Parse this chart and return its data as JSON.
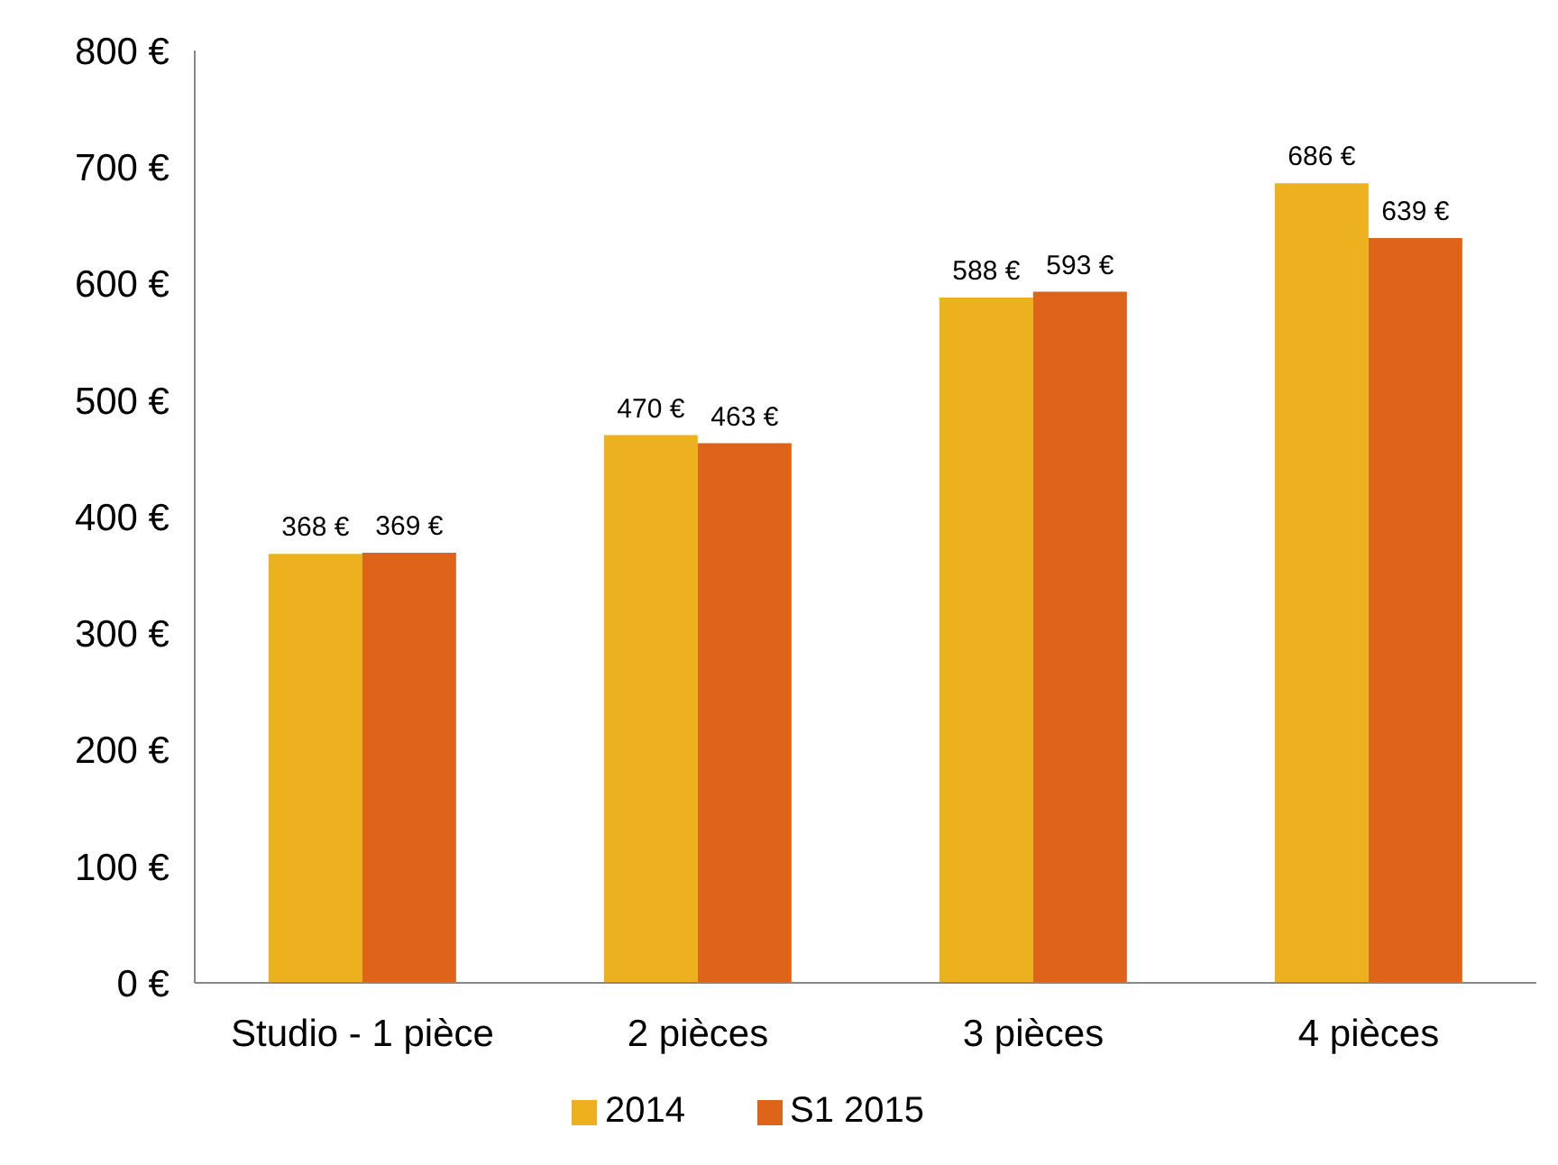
{
  "chart_data": {
    "type": "bar",
    "categories": [
      "Studio - 1 pièce",
      "2 pièces",
      "3 pièces",
      "4 pièces"
    ],
    "series": [
      {
        "name": "2014",
        "color": "#edb01f",
        "values": [
          368,
          470,
          588,
          686
        ],
        "value_labels": [
          "368 €",
          "470 €",
          "588 €",
          "686 €"
        ]
      },
      {
        "name": "S1 2015",
        "color": "#dd6418",
        "values": [
          369,
          463,
          593,
          639
        ],
        "value_labels": [
          "369 €",
          "463 €",
          "593 €",
          "639 €"
        ]
      }
    ],
    "ylim": [
      0,
      800
    ],
    "yticks": [
      {
        "value": 0,
        "label": "0 €"
      },
      {
        "value": 100,
        "label": "100 €"
      },
      {
        "value": 200,
        "label": "200 €"
      },
      {
        "value": 300,
        "label": "300 €"
      },
      {
        "value": 400,
        "label": "400 €"
      },
      {
        "value": 500,
        "label": "500 €"
      },
      {
        "value": 600,
        "label": "600 €"
      },
      {
        "value": 700,
        "label": "700 €"
      },
      {
        "value": 800,
        "label": "800 €"
      }
    ],
    "grid": false,
    "legend": "bottom"
  }
}
